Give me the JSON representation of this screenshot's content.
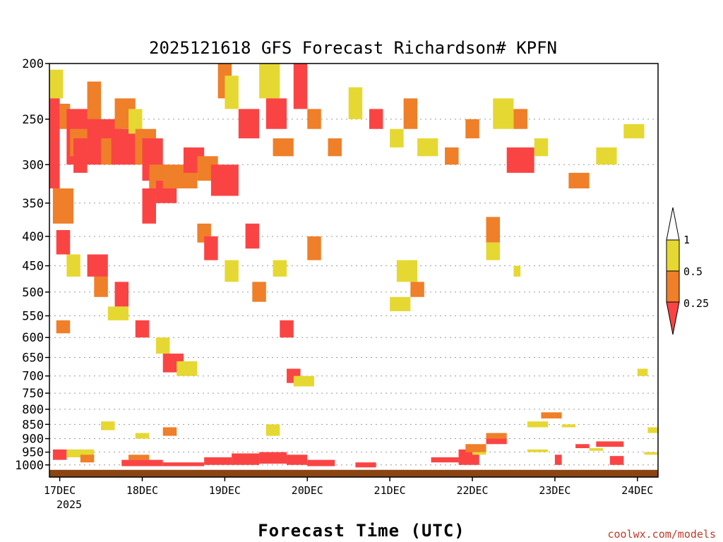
{
  "chart_data": {
    "type": "heatmap",
    "title": "2025121618 GFS Forecast Richardson# KPFN",
    "xlabel": "Forecast Time (UTC)",
    "ylabel": "",
    "credit": "coolwx.com/models",
    "x_tick_labels": [
      "17DEC",
      "18DEC",
      "19DEC",
      "20DEC",
      "21DEC",
      "22DEC",
      "23DEC",
      "24DEC"
    ],
    "x_year_label": "2025",
    "xlim_hours": [
      -3,
      174
    ],
    "y_levels": [
      200,
      250,
      300,
      350,
      400,
      450,
      500,
      550,
      600,
      650,
      700,
      750,
      800,
      850,
      900,
      950,
      1000
    ],
    "ylim": [
      200,
      1050
    ],
    "y_scale": "log",
    "grid": "dotted horizontal lines at pressure levels",
    "legend": {
      "placement": "right",
      "labels": [
        "1",
        "0.5",
        "0.25"
      ],
      "colors": [
        "#ffffff",
        "#e6d832",
        "#ef7f28",
        "#fa4444"
      ]
    },
    "colors": {
      "yellow": "#e6d832",
      "orange": "#ef7f28",
      "red": "#fa4444",
      "ground": "#8b4513"
    },
    "ground_level_hpa": 1020,
    "cells": [
      {
        "t": [
          -3,
          1
        ],
        "p": [
          205,
          230
        ],
        "c": "y"
      },
      {
        "t": [
          -3,
          0
        ],
        "p": [
          230,
          330
        ],
        "c": "r"
      },
      {
        "t": [
          0,
          3
        ],
        "p": [
          235,
          260
        ],
        "c": "o"
      },
      {
        "t": [
          2,
          12
        ],
        "p": [
          240,
          300
        ],
        "c": "r"
      },
      {
        "t": [
          3,
          8
        ],
        "p": [
          260,
          290
        ],
        "c": "o"
      },
      {
        "t": [
          4,
          8
        ],
        "p": [
          270,
          310
        ],
        "c": "r"
      },
      {
        "t": [
          8,
          12
        ],
        "p": [
          215,
          250
        ],
        "c": "o"
      },
      {
        "t": [
          9,
          18
        ],
        "p": [
          250,
          290
        ],
        "c": "r"
      },
      {
        "t": [
          12,
          16
        ],
        "p": [
          270,
          300
        ],
        "c": "o"
      },
      {
        "t": [
          15,
          22
        ],
        "p": [
          260,
          300
        ],
        "c": "r"
      },
      {
        "t": [
          16,
          22
        ],
        "p": [
          230,
          260
        ],
        "c": "o"
      },
      {
        "t": [
          20,
          24
        ],
        "p": [
          240,
          265
        ],
        "c": "y"
      },
      {
        "t": [
          22,
          28
        ],
        "p": [
          260,
          300
        ],
        "c": "o"
      },
      {
        "t": [
          24,
          30
        ],
        "p": [
          270,
          320
        ],
        "c": "r"
      },
      {
        "t": [
          26,
          32
        ],
        "p": [
          300,
          340
        ],
        "c": "o"
      },
      {
        "t": [
          28,
          34
        ],
        "p": [
          320,
          350
        ],
        "c": "r"
      },
      {
        "t": [
          30,
          40
        ],
        "p": [
          300,
          330
        ],
        "c": "o"
      },
      {
        "t": [
          36,
          42
        ],
        "p": [
          280,
          310
        ],
        "c": "r"
      },
      {
        "t": [
          40,
          46
        ],
        "p": [
          290,
          320
        ],
        "c": "o"
      },
      {
        "t": [
          44,
          52
        ],
        "p": [
          300,
          340
        ],
        "c": "r"
      },
      {
        "t": [
          46,
          50
        ],
        "p": [
          200,
          230
        ],
        "c": "o"
      },
      {
        "t": [
          48,
          52
        ],
        "p": [
          210,
          240
        ],
        "c": "y"
      },
      {
        "t": [
          52,
          58
        ],
        "p": [
          240,
          270
        ],
        "c": "r"
      },
      {
        "t": [
          58,
          64
        ],
        "p": [
          200,
          230
        ],
        "c": "y"
      },
      {
        "t": [
          60,
          66
        ],
        "p": [
          230,
          260
        ],
        "c": "r"
      },
      {
        "t": [
          62,
          68
        ],
        "p": [
          270,
          290
        ],
        "c": "o"
      },
      {
        "t": [
          68,
          72
        ],
        "p": [
          200,
          240
        ],
        "c": "r"
      },
      {
        "t": [
          72,
          76
        ],
        "p": [
          240,
          260
        ],
        "c": "o"
      },
      {
        "t": [
          78,
          82
        ],
        "p": [
          270,
          290
        ],
        "c": "o"
      },
      {
        "t": [
          84,
          88
        ],
        "p": [
          220,
          250
        ],
        "c": "y"
      },
      {
        "t": [
          90,
          94
        ],
        "p": [
          240,
          260
        ],
        "c": "r"
      },
      {
        "t": [
          96,
          100
        ],
        "p": [
          260,
          280
        ],
        "c": "y"
      },
      {
        "t": [
          100,
          104
        ],
        "p": [
          230,
          260
        ],
        "c": "o"
      },
      {
        "t": [
          104,
          110
        ],
        "p": [
          270,
          290
        ],
        "c": "y"
      },
      {
        "t": [
          112,
          116
        ],
        "p": [
          280,
          300
        ],
        "c": "o"
      },
      {
        "t": [
          118,
          122
        ],
        "p": [
          250,
          270
        ],
        "c": "o"
      },
      {
        "t": [
          126,
          132
        ],
        "p": [
          230,
          260
        ],
        "c": "y"
      },
      {
        "t": [
          132,
          136
        ],
        "p": [
          240,
          260
        ],
        "c": "o"
      },
      {
        "t": [
          130,
          138
        ],
        "p": [
          280,
          310
        ],
        "c": "r"
      },
      {
        "t": [
          138,
          142
        ],
        "p": [
          270,
          290
        ],
        "c": "y"
      },
      {
        "t": [
          148,
          154
        ],
        "p": [
          310,
          330
        ],
        "c": "o"
      },
      {
        "t": [
          156,
          162
        ],
        "p": [
          280,
          300
        ],
        "c": "y"
      },
      {
        "t": [
          164,
          170
        ],
        "p": [
          255,
          270
        ],
        "c": "y"
      },
      {
        "t": [
          -2,
          4
        ],
        "p": [
          330,
          380
        ],
        "c": "o"
      },
      {
        "t": [
          -1,
          3
        ],
        "p": [
          390,
          430
        ],
        "c": "r"
      },
      {
        "t": [
          2,
          6
        ],
        "p": [
          430,
          470
        ],
        "c": "y"
      },
      {
        "t": [
          8,
          14
        ],
        "p": [
          430,
          470
        ],
        "c": "r"
      },
      {
        "t": [
          10,
          14
        ],
        "p": [
          470,
          510
        ],
        "c": "o"
      },
      {
        "t": [
          16,
          20
        ],
        "p": [
          480,
          530
        ],
        "c": "r"
      },
      {
        "t": [
          14,
          20
        ],
        "p": [
          530,
          560
        ],
        "c": "y"
      },
      {
        "t": [
          22,
          26
        ],
        "p": [
          560,
          600
        ],
        "c": "r"
      },
      {
        "t": [
          24,
          28
        ],
        "p": [
          330,
          380
        ],
        "c": "r"
      },
      {
        "t": [
          28,
          32
        ],
        "p": [
          600,
          640
        ],
        "c": "y"
      },
      {
        "t": [
          30,
          36
        ],
        "p": [
          640,
          690
        ],
        "c": "r"
      },
      {
        "t": [
          34,
          40
        ],
        "p": [
          660,
          700
        ],
        "c": "y"
      },
      {
        "t": [
          40,
          44
        ],
        "p": [
          380,
          410
        ],
        "c": "o"
      },
      {
        "t": [
          42,
          46
        ],
        "p": [
          400,
          440
        ],
        "c": "r"
      },
      {
        "t": [
          48,
          52
        ],
        "p": [
          440,
          480
        ],
        "c": "y"
      },
      {
        "t": [
          54,
          58
        ],
        "p": [
          380,
          420
        ],
        "c": "r"
      },
      {
        "t": [
          56,
          60
        ],
        "p": [
          480,
          520
        ],
        "c": "o"
      },
      {
        "t": [
          62,
          66
        ],
        "p": [
          440,
          470
        ],
        "c": "y"
      },
      {
        "t": [
          64,
          68
        ],
        "p": [
          560,
          600
        ],
        "c": "r"
      },
      {
        "t": [
          66,
          70
        ],
        "p": [
          680,
          720
        ],
        "c": "r"
      },
      {
        "t": [
          68,
          74
        ],
        "p": [
          700,
          730
        ],
        "c": "y"
      },
      {
        "t": [
          72,
          76
        ],
        "p": [
          400,
          440
        ],
        "c": "o"
      },
      {
        "t": [
          -1,
          3
        ],
        "p": [
          560,
          590
        ],
        "c": "o"
      },
      {
        "t": [
          98,
          104
        ],
        "p": [
          440,
          480
        ],
        "c": "y"
      },
      {
        "t": [
          102,
          106
        ],
        "p": [
          480,
          510
        ],
        "c": "o"
      },
      {
        "t": [
          96,
          102
        ],
        "p": [
          510,
          540
        ],
        "c": "y"
      },
      {
        "t": [
          124,
          128
        ],
        "p": [
          370,
          410
        ],
        "c": "o"
      },
      {
        "t": [
          124,
          128
        ],
        "p": [
          410,
          440
        ],
        "c": "y"
      },
      {
        "t": [
          132,
          134
        ],
        "p": [
          450,
          470
        ],
        "c": "y"
      },
      {
        "t": [
          12,
          16
        ],
        "p": [
          840,
          870
        ],
        "c": "y"
      },
      {
        "t": [
          22,
          26
        ],
        "p": [
          880,
          900
        ],
        "c": "y"
      },
      {
        "t": [
          30,
          34
        ],
        "p": [
          860,
          890
        ],
        "c": "o"
      },
      {
        "t": [
          60,
          64
        ],
        "p": [
          850,
          890
        ],
        "c": "y"
      },
      {
        "t": [
          140,
          146
        ],
        "p": [
          810,
          830
        ],
        "c": "o"
      },
      {
        "t": [
          136,
          142
        ],
        "p": [
          840,
          860
        ],
        "c": "y"
      },
      {
        "t": [
          146,
          150
        ],
        "p": [
          850,
          860
        ],
        "c": "y"
      },
      {
        "t": [
          168,
          171
        ],
        "p": [
          680,
          700
        ],
        "c": "y"
      },
      {
        "t": [
          171,
          174
        ],
        "p": [
          860,
          880
        ],
        "c": "y"
      },
      {
        "t": [
          124,
          130
        ],
        "p": [
          880,
          900
        ],
        "c": "o"
      },
      {
        "t": [
          124,
          130
        ],
        "p": [
          900,
          920
        ],
        "c": "r"
      },
      {
        "t": [
          -2,
          2
        ],
        "p": [
          940,
          980
        ],
        "c": "r"
      },
      {
        "t": [
          2,
          10
        ],
        "p": [
          940,
          970
        ],
        "c": "y"
      },
      {
        "t": [
          6,
          10
        ],
        "p": [
          960,
          990
        ],
        "c": "o"
      },
      {
        "t": [
          20,
          26
        ],
        "p": [
          960,
          980
        ],
        "c": "o"
      },
      {
        "t": [
          18,
          30
        ],
        "p": [
          980,
          1005
        ],
        "c": "r"
      },
      {
        "t": [
          30,
          42
        ],
        "p": [
          990,
          1005
        ],
        "c": "r"
      },
      {
        "t": [
          42,
          50
        ],
        "p": [
          970,
          1000
        ],
        "c": "r"
      },
      {
        "t": [
          50,
          58
        ],
        "p": [
          955,
          1000
        ],
        "c": "r"
      },
      {
        "t": [
          58,
          66
        ],
        "p": [
          950,
          995
        ],
        "c": "r"
      },
      {
        "t": [
          66,
          72
        ],
        "p": [
          960,
          1000
        ],
        "c": "r"
      },
      {
        "t": [
          72,
          80
        ],
        "p": [
          980,
          1005
        ],
        "c": "r"
      },
      {
        "t": [
          86,
          92
        ],
        "p": [
          990,
          1010
        ],
        "c": "r"
      },
      {
        "t": [
          108,
          118
        ],
        "p": [
          970,
          990
        ],
        "c": "r"
      },
      {
        "t": [
          116,
          122
        ],
        "p": [
          940,
          1000
        ],
        "c": "r"
      },
      {
        "t": [
          118,
          124
        ],
        "p": [
          920,
          950
        ],
        "c": "o"
      },
      {
        "t": [
          120,
          124
        ],
        "p": [
          950,
          960
        ],
        "c": "y"
      },
      {
        "t": [
          136,
          142
        ],
        "p": [
          940,
          950
        ],
        "c": "y"
      },
      {
        "t": [
          144,
          146
        ],
        "p": [
          960,
          1000
        ],
        "c": "r"
      },
      {
        "t": [
          150,
          154
        ],
        "p": [
          920,
          935
        ],
        "c": "r"
      },
      {
        "t": [
          156,
          164
        ],
        "p": [
          910,
          930
        ],
        "c": "r"
      },
      {
        "t": [
          154,
          158
        ],
        "p": [
          935,
          945
        ],
        "c": "y"
      },
      {
        "t": [
          160,
          164
        ],
        "p": [
          965,
          1000
        ],
        "c": "r"
      },
      {
        "t": [
          170,
          174
        ],
        "p": [
          950,
          960
        ],
        "c": "y"
      }
    ]
  }
}
